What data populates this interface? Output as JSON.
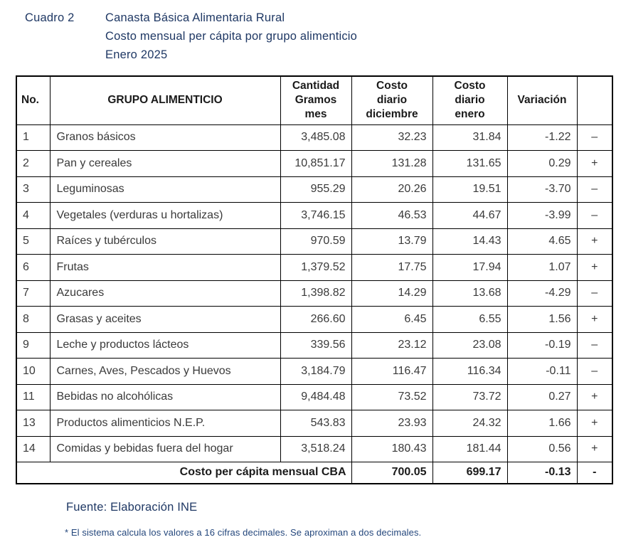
{
  "header": {
    "label": "Cuadro 2",
    "title_lines": [
      "Canasta Básica Alimentaria Rural",
      "Costo mensual per cápita por grupo alimenticio",
      "Enero 2025"
    ]
  },
  "table": {
    "columns": [
      "No.",
      "GRUPO ALIMENTICIO",
      "Cantidad\nGramos\nmes",
      "Costo\ndiario\ndiciembre",
      "Costo\ndiario\nenero",
      "Variación",
      ""
    ],
    "rows": [
      {
        "no": "1",
        "grupo": "Granos básicos",
        "cantidad": "3,485.08",
        "dic": "32.23",
        "ene": "31.84",
        "var": "-1.22",
        "sign": "–"
      },
      {
        "no": "2",
        "grupo": "Pan y cereales",
        "cantidad": "10,851.17",
        "dic": "131.28",
        "ene": "131.65",
        "var": "0.29",
        "sign": "+"
      },
      {
        "no": "3",
        "grupo": "Leguminosas",
        "cantidad": "955.29",
        "dic": "20.26",
        "ene": "19.51",
        "var": "-3.70",
        "sign": "–"
      },
      {
        "no": "4",
        "grupo": "Vegetales (verduras u hortalizas)",
        "cantidad": "3,746.15",
        "dic": "46.53",
        "ene": "44.67",
        "var": "-3.99",
        "sign": "–"
      },
      {
        "no": "5",
        "grupo": "Raíces y tubérculos",
        "cantidad": "970.59",
        "dic": "13.79",
        "ene": "14.43",
        "var": "4.65",
        "sign": "+"
      },
      {
        "no": "6",
        "grupo": "Frutas",
        "cantidad": "1,379.52",
        "dic": "17.75",
        "ene": "17.94",
        "var": "1.07",
        "sign": "+"
      },
      {
        "no": "7",
        "grupo": "Azucares",
        "cantidad": "1,398.82",
        "dic": "14.29",
        "ene": "13.68",
        "var": "-4.29",
        "sign": "–"
      },
      {
        "no": "8",
        "grupo": "Grasas y aceites",
        "cantidad": "266.60",
        "dic": "6.45",
        "ene": "6.55",
        "var": "1.56",
        "sign": "+"
      },
      {
        "no": "9",
        "grupo": "Leche y productos lácteos",
        "cantidad": "339.56",
        "dic": "23.12",
        "ene": "23.08",
        "var": "-0.19",
        "sign": "–"
      },
      {
        "no": "10",
        "grupo": "Carnes, Aves, Pescados y Huevos",
        "cantidad": "3,184.79",
        "dic": "116.47",
        "ene": "116.34",
        "var": "-0.11",
        "sign": "–"
      },
      {
        "no": "11",
        "grupo": "Bebidas no alcohólicas",
        "cantidad": "9,484.48",
        "dic": "73.52",
        "ene": "73.72",
        "var": "0.27",
        "sign": "+"
      },
      {
        "no": "13",
        "grupo": "Productos alimenticios N.E.P.",
        "cantidad": "543.83",
        "dic": "23.93",
        "ene": "24.32",
        "var": "1.66",
        "sign": "+"
      },
      {
        "no": "14",
        "grupo": "Comidas y bebidas fuera del hogar",
        "cantidad": "3,518.24",
        "dic": "180.43",
        "ene": "181.44",
        "var": "0.56",
        "sign": "+"
      }
    ],
    "total": {
      "label": "Costo per cápita mensual CBA",
      "dic": "700.05",
      "ene": "699.17",
      "var": "-0.13",
      "sign": "-"
    }
  },
  "footer": {
    "source": "Fuente: Elaboración INE",
    "note": "* El sistema calcula los valores a 16 cifras decimales. Se aproximan a dos decimales."
  },
  "colors": {
    "title_navy": "#1f3864",
    "note_blue": "#24477c",
    "table_text": "#3a3a3a",
    "border": "#000000"
  }
}
